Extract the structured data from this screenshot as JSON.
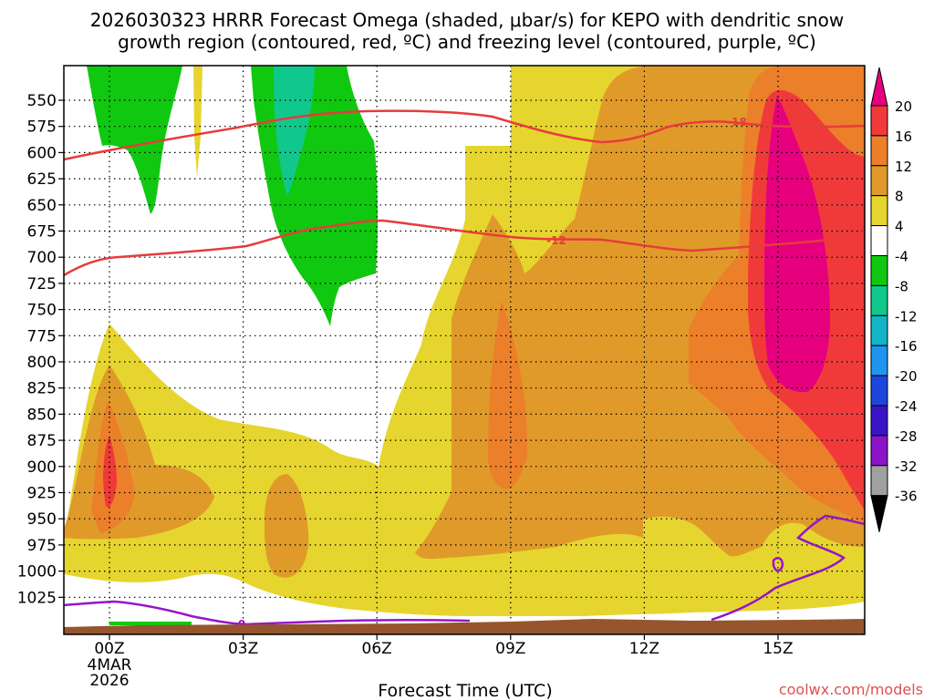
{
  "chart_data": {
    "type": "heatmap",
    "title_line1": "2026030323 HRRR Forecast Omega (shaded, μbar/s) for KEPO with dendritic snow",
    "title_line2": "growth region (contoured, red, ºC) and freezing level (contoured, purple, ºC)",
    "xlabel": "Forecast Time (UTC)",
    "ylabel": "",
    "y_ticks": [
      "550",
      "575",
      "600",
      "625",
      "650",
      "675",
      "700",
      "725",
      "750",
      "775",
      "800",
      "825",
      "850",
      "875",
      "900",
      "925",
      "950",
      "975",
      "1000",
      "1025"
    ],
    "x_ticks": [
      "00Z",
      "03Z",
      "06Z",
      "09Z",
      "12Z",
      "15Z"
    ],
    "x_sublabels": [
      "4MAR",
      "2026"
    ],
    "colorbar": {
      "labels": [
        "20",
        "16",
        "12",
        "8",
        "4",
        "-4",
        "-8",
        "-12",
        "-16",
        "-20",
        "-24",
        "-28",
        "-32",
        "-36"
      ],
      "colors": [
        "#e6007e",
        "#f03a3a",
        "#ec7f2a",
        "#e09a2a",
        "#e6d52e",
        "#ffffff",
        "#10c810",
        "#10c88c",
        "#14b4c8",
        "#1e96f0",
        "#1e46dc",
        "#3c14c8",
        "#8c14c8",
        "#a0a0a0",
        "#000000"
      ]
    },
    "contours": [
      {
        "name": "dendritic-growth-temp",
        "color": "#e63c3c",
        "levels": [
          "-18",
          "-12"
        ]
      },
      {
        "name": "freezing-level",
        "color": "#9614c8",
        "levels": [
          "0"
        ]
      }
    ],
    "terrain_color": "#96552d",
    "credit": "coolwx.com/models"
  }
}
